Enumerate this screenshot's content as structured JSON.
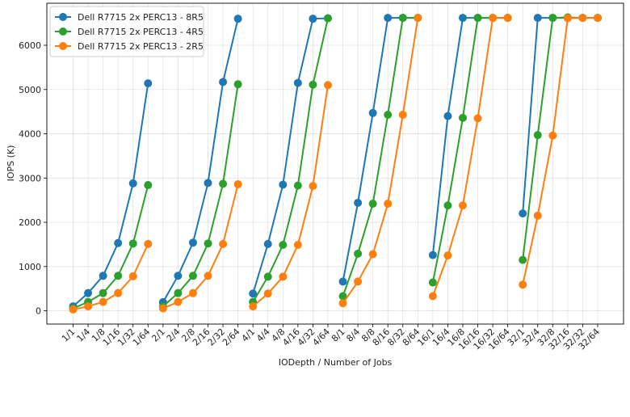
{
  "chart_data": {
    "type": "line",
    "title": "",
    "xlabel": "IODepth / Number of Jobs",
    "ylabel": "IOPS (K)",
    "ylim": [
      -300,
      6950
    ],
    "yticks": [
      0,
      1000,
      2000,
      3000,
      4000,
      5000,
      6000
    ],
    "grid": true,
    "legend_position": "top-left",
    "categories": [
      "1/1",
      "1/4",
      "1/8",
      "1/16",
      "1/32",
      "1/64",
      "2/1",
      "2/4",
      "2/8",
      "2/16",
      "2/32",
      "2/64",
      "4/1",
      "4/4",
      "4/8",
      "4/16",
      "4/32",
      "4/64",
      "8/1",
      "8/4",
      "8/8",
      "8/16",
      "8/32",
      "8/64",
      "16/1",
      "16/4",
      "16/8",
      "16/16",
      "16/32",
      "16/64",
      "32/1",
      "32/4",
      "32/8",
      "32/16",
      "32/32",
      "32/64"
    ],
    "groups": [
      {
        "start": 0,
        "end": 5
      },
      {
        "start": 6,
        "end": 11
      },
      {
        "start": 12,
        "end": 17
      },
      {
        "start": 18,
        "end": 23
      },
      {
        "start": 24,
        "end": 29
      },
      {
        "start": 30,
        "end": 35
      }
    ],
    "series": [
      {
        "name": "Dell R7715 2x PERC13 - 8R5",
        "color": "#1f77b4",
        "values": [
          100,
          400,
          790,
          1530,
          2880,
          5140,
          195,
          790,
          1540,
          2890,
          5170,
          6600,
          390,
          1510,
          2850,
          5150,
          6600,
          6610,
          660,
          2440,
          4470,
          6620,
          6620,
          6620,
          1260,
          4400,
          6620,
          6620,
          6620,
          6620,
          2200,
          6620,
          6620,
          6620,
          6620,
          6620
        ]
      },
      {
        "name": "Dell R7715 2x PERC13 - 4R5",
        "color": "#2ca02c",
        "values": [
          55,
          200,
          400,
          790,
          1520,
          2840,
          100,
          400,
          790,
          1520,
          2870,
          5120,
          200,
          770,
          1490,
          2830,
          5110,
          6610,
          330,
          1290,
          2420,
          4430,
          6620,
          6620,
          640,
          2380,
          4360,
          6620,
          6620,
          6620,
          1150,
          3970,
          6620,
          6630,
          6620,
          6620
        ]
      },
      {
        "name": "Dell R7715 2x PERC13 - 2R5",
        "color": "#ff7f0e",
        "values": [
          30,
          100,
          200,
          400,
          780,
          1510,
          55,
          200,
          400,
          790,
          1510,
          2860,
          100,
          390,
          770,
          1490,
          2820,
          5100,
          170,
          660,
          1280,
          2420,
          4430,
          6620,
          330,
          1250,
          2380,
          4350,
          6620,
          6620,
          590,
          2150,
          3960,
          6610,
          6620,
          6620
        ]
      }
    ]
  }
}
